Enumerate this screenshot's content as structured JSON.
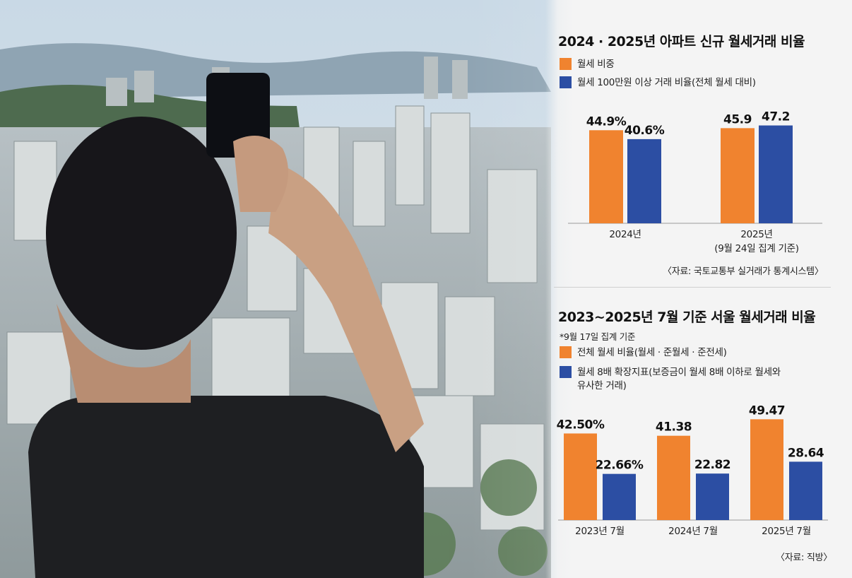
{
  "colors": {
    "orange": "#f0832f",
    "blue": "#2c4ea3",
    "panel_bg": "#f4f4f4"
  },
  "top_chart": {
    "title": "2024 · 2025년 아파트 신규 월세거래 비율",
    "legend": [
      {
        "label": "월세 비중",
        "color": "#f0832f"
      },
      {
        "label": "월세 100만원 이상 거래 비율(전체 월세 대비)",
        "color": "#2c4ea3"
      }
    ],
    "source": "〈자료: 국토교통부 실거래가 통계시스템〉"
  },
  "bottom_chart": {
    "title": "2023~2025년 7월 기준 서울 월세거래 비율",
    "note": "*9월 17일 집계 기준",
    "legend": [
      {
        "label": "전체 월세 비율(월세 · 준월세 · 준전세)",
        "color": "#f0832f"
      },
      {
        "label": "월세 8배 확장지표(보증금이 월세 8배 이하로 월세와\n유사한 거래)",
        "color": "#2c4ea3"
      }
    ],
    "source": "〈자료: 직방〉"
  },
  "chart_data": [
    {
      "type": "bar",
      "title": "2024 · 2025년 아파트 신규 월세거래 비율",
      "categories": [
        "2024년",
        "2025년\n(9월 24일 집계 기준)"
      ],
      "series": [
        {
          "name": "월세 비중",
          "values": [
            44.9,
            45.9
          ],
          "labels": [
            "44.9%",
            "45.9"
          ],
          "color": "#f0832f"
        },
        {
          "name": "월세 100만원 이상 거래 비율(전체 월세 대비)",
          "values": [
            40.6,
            47.2
          ],
          "labels": [
            "40.6%",
            "47.2"
          ],
          "color": "#2c4ea3"
        }
      ],
      "ylim": [
        0,
        60
      ]
    },
    {
      "type": "bar",
      "title": "2023~2025년 7월 기준 서울 월세거래 비율",
      "categories": [
        "2023년 7월",
        "2024년 7월",
        "2025년 7월"
      ],
      "series": [
        {
          "name": "전체 월세 비율(월세 · 준월세 · 준전세)",
          "values": [
            42.5,
            41.38,
            49.47
          ],
          "labels": [
            "42.50%",
            "41.38",
            "49.47"
          ],
          "color": "#f0832f"
        },
        {
          "name": "월세 8배 확장지표(보증금이 월세 8배 이하로 월세와 유사한 거래)",
          "values": [
            22.66,
            22.82,
            28.64
          ],
          "labels": [
            "22.66%",
            "22.82",
            "28.64"
          ],
          "color": "#2c4ea3"
        }
      ],
      "ylim": [
        0,
        60
      ]
    }
  ]
}
